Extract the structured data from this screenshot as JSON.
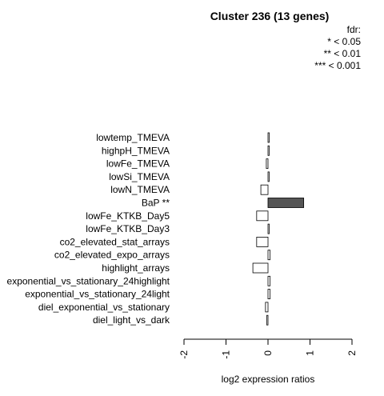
{
  "chart_data": {
    "type": "bar",
    "orientation": "horizontal",
    "title": "Cluster 236 (13 genes)",
    "xlabel": "log2 expression ratios",
    "ylabel": "",
    "xlim": [
      -2,
      2
    ],
    "xticks": [
      -2,
      -1,
      0,
      1,
      2
    ],
    "xtick_labels": [
      "-2",
      "-1",
      "0",
      "1",
      "2"
    ],
    "legend": {
      "title": "fdr:",
      "entries": [
        "* < 0.05",
        "** < 0.01",
        "*** < 0.001"
      ],
      "placement": "top-right"
    },
    "categories": [
      "lowtemp_TMEVA",
      "highpH_TMEVA",
      "lowFe_TMEVA",
      "lowSi_TMEVA",
      "lowN_TMEVA",
      "BaP **",
      "lowFe_KTKB_Day5",
      "lowFe_KTKB_Day3",
      "co2_elevated_stat_arrays",
      "co2_elevated_expo_arrays",
      "highlight_arrays",
      "exponential_vs_stationary_24highlight",
      "exponential_vs_stationary_24light",
      "diel_exponential_vs_stationary",
      "diel_light_vs_dark"
    ],
    "values": [
      0.03,
      0.02,
      -0.04,
      0.02,
      -0.17,
      0.85,
      -0.27,
      0.03,
      -0.27,
      0.05,
      -0.36,
      0.05,
      0.05,
      -0.06,
      -0.03
    ],
    "colors": [
      "#ffffff",
      "#ffffff",
      "#ffffff",
      "#ffffff",
      "#ffffff",
      "#555555",
      "#ffffff",
      "#ffffff",
      "#ffffff",
      "#ffffff",
      "#ffffff",
      "#ffffff",
      "#ffffff",
      "#ffffff",
      "#ffffff"
    ]
  }
}
